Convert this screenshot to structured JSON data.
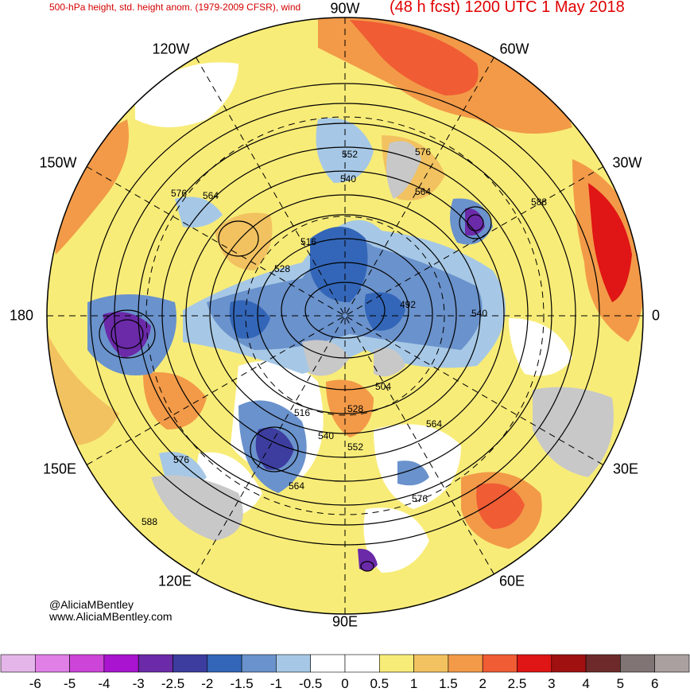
{
  "header": {
    "left_title": "500-hPa height, std. height anom. (1979-2009 CFSR), wind",
    "right_title": "(48 h fcst) 1200 UTC 1 May 2018"
  },
  "longitude_labels": [
    {
      "id": "lon-90w",
      "text": "90W"
    },
    {
      "id": "lon-60w",
      "text": "60W"
    },
    {
      "id": "lon-30w",
      "text": "30W"
    },
    {
      "id": "lon-0",
      "text": "0"
    },
    {
      "id": "lon-30e",
      "text": "30E"
    },
    {
      "id": "lon-60e",
      "text": "60E"
    },
    {
      "id": "lon-90e",
      "text": "90E"
    },
    {
      "id": "lon-120e",
      "text": "120E"
    },
    {
      "id": "lon-150e",
      "text": "150E"
    },
    {
      "id": "lon-180",
      "text": "180"
    },
    {
      "id": "lon-150w",
      "text": "150W"
    },
    {
      "id": "lon-120w",
      "text": "120W"
    }
  ],
  "contour_labels": [
    "552",
    "540",
    "576",
    "564",
    "588",
    "576",
    "564",
    "516",
    "528",
    "492",
    "540",
    "504",
    "516",
    "528",
    "540",
    "552",
    "564",
    "576",
    "576",
    "564",
    "588"
  ],
  "credit": {
    "handle": "@AliciaMBentley",
    "website": "www.AliciaMBentley.com"
  },
  "colorbar": {
    "labels": [
      "-6",
      "-5",
      "-4",
      "-3",
      "-2.5",
      "-2",
      "-1.5",
      "-1",
      "-0.5",
      "0",
      "0.5",
      "1",
      "1.5",
      "2",
      "2.5",
      "3",
      "4",
      "5",
      "6"
    ],
    "colors": [
      "#e3b5e8",
      "#e07fe6",
      "#cc44d8",
      "#a814cf",
      "#6b2aa8",
      "#3c3d9e",
      "#3366b8",
      "#6a92cc",
      "#a6c8e6",
      "#ffffff",
      "#ffffff",
      "#f8ec78",
      "#f2c260",
      "#f29a48",
      "#f05c34",
      "#e01515",
      "#a01010",
      "#6e2a2a",
      "#807474",
      "#aaa0a0"
    ]
  }
}
